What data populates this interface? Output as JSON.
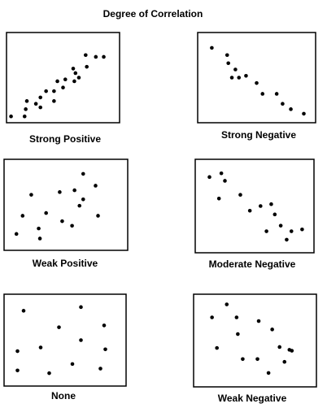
{
  "title": "Degree of Correlation",
  "chart_data": [
    {
      "type": "scatter",
      "title": "Strong Positive",
      "color": "#000000",
      "xlim": [
        0,
        100
      ],
      "ylim": [
        0,
        100
      ],
      "x": [
        4,
        16,
        18,
        17,
        26,
        30,
        30,
        35,
        42,
        42,
        45,
        50,
        52,
        59,
        60,
        61,
        64,
        70,
        71,
        79,
        86
      ],
      "values": [
        7,
        7,
        24,
        15,
        21,
        28,
        17,
        35,
        35,
        24,
        46,
        39,
        48,
        60,
        46,
        55,
        50,
        75,
        62,
        73,
        73
      ]
    },
    {
      "type": "scatter",
      "title": "Strong Negative",
      "color": "#000000",
      "xlim": [
        0,
        100
      ],
      "ylim": [
        0,
        100
      ],
      "x": [
        12,
        25,
        26,
        32,
        29,
        35,
        41,
        50,
        55,
        67,
        72,
        79,
        90
      ],
      "values": [
        83,
        75,
        66,
        59,
        50,
        50,
        52,
        44,
        32,
        32,
        21,
        15,
        10
      ]
    },
    {
      "type": "scatter",
      "title": "Weak Positive",
      "color": "#000000",
      "xlim": [
        0,
        100
      ],
      "ylim": [
        0,
        100
      ],
      "x": [
        22,
        64,
        74,
        45,
        57,
        64,
        15,
        34,
        61,
        47,
        28,
        55,
        10,
        29,
        76
      ],
      "values": [
        61,
        84,
        71,
        64,
        66,
        56,
        38,
        41,
        49,
        32,
        24,
        27,
        18,
        13,
        38
      ]
    },
    {
      "type": "scatter",
      "title": "Moderate Negative",
      "color": "#000000",
      "xlim": [
        0,
        100
      ],
      "ylim": [
        0,
        100
      ],
      "x": [
        12,
        22,
        25,
        20,
        38,
        46,
        55,
        64,
        67,
        60,
        72,
        81,
        77,
        90
      ],
      "values": [
        81,
        85,
        77,
        58,
        62,
        45,
        50,
        52,
        41,
        23,
        29,
        23,
        14,
        25
      ]
    },
    {
      "type": "scatter",
      "title": "None",
      "color": "#000000",
      "xlim": [
        0,
        100
      ],
      "ylim": [
        0,
        100
      ],
      "x": [
        16,
        63,
        82,
        45,
        63,
        11,
        30,
        83,
        56,
        11,
        37,
        79
      ],
      "values": [
        82,
        86,
        66,
        64,
        50,
        38,
        42,
        40,
        24,
        17,
        14,
        19
      ]
    },
    {
      "type": "scatter",
      "title": "Weak Negative",
      "color": "#000000",
      "xlim": [
        0,
        100
      ],
      "ylim": [
        0,
        100
      ],
      "x": [
        27,
        15,
        35,
        53,
        36,
        64,
        19,
        70,
        78,
        80,
        40,
        52,
        74,
        61
      ],
      "values": [
        89,
        75,
        75,
        71,
        57,
        62,
        42,
        43,
        40,
        39,
        30,
        30,
        27,
        15
      ]
    }
  ]
}
